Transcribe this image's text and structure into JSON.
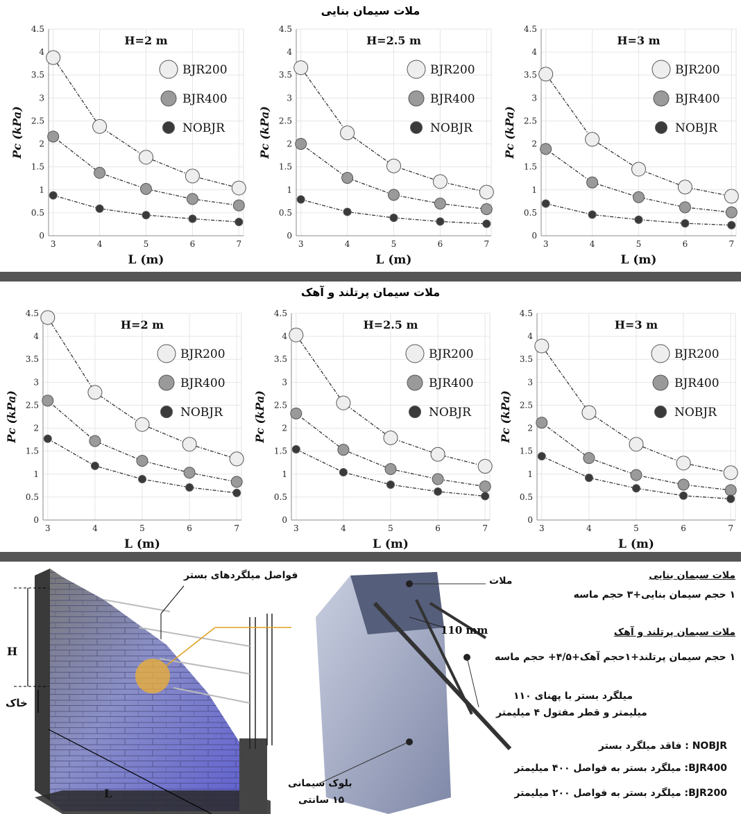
{
  "section_titles": [
    "ملات سیمان بنایی",
    "ملات سیمان پرتلند و آهک"
  ],
  "chart_data": [
    {
      "type": "scatter",
      "title": "H=2 m",
      "xlabel": "L (m)",
      "ylabel": "Pc (kPa)",
      "x": [
        3,
        4,
        5,
        6,
        7
      ],
      "xlim": [
        2.9,
        7.1
      ],
      "ylim": [
        0,
        4.5
      ],
      "grid": true,
      "legend": "top-right",
      "series": [
        {
          "name": "BJR200",
          "values": [
            3.88,
            2.38,
            1.71,
            1.3,
            1.04
          ]
        },
        {
          "name": "BJR400",
          "values": [
            2.16,
            1.37,
            1.02,
            0.8,
            0.66
          ]
        },
        {
          "name": "NOBJR",
          "values": [
            0.88,
            0.59,
            0.45,
            0.37,
            0.3
          ]
        }
      ]
    },
    {
      "type": "scatter",
      "title": "H=2.5 m",
      "xlabel": "L (m)",
      "ylabel": "Pc (kPa)",
      "x": [
        3,
        4,
        5,
        6,
        7
      ],
      "xlim": [
        2.9,
        7.1
      ],
      "ylim": [
        0,
        4.5
      ],
      "grid": true,
      "legend": "top-right",
      "series": [
        {
          "name": "BJR200",
          "values": [
            3.66,
            2.24,
            1.52,
            1.18,
            0.95
          ]
        },
        {
          "name": "BJR400",
          "values": [
            2.0,
            1.26,
            0.89,
            0.7,
            0.58
          ]
        },
        {
          "name": "NOBJR",
          "values": [
            0.79,
            0.52,
            0.39,
            0.31,
            0.26
          ]
        }
      ]
    },
    {
      "type": "scatter",
      "title": "H=3 m",
      "xlabel": "L (m)",
      "ylabel": "Pc (kPa)",
      "x": [
        3,
        4,
        5,
        6,
        7
      ],
      "xlim": [
        2.9,
        7.1
      ],
      "ylim": [
        0,
        4.5
      ],
      "grid": true,
      "legend": "top-right",
      "series": [
        {
          "name": "BJR200",
          "values": [
            3.52,
            2.1,
            1.45,
            1.06,
            0.86
          ]
        },
        {
          "name": "BJR400",
          "values": [
            1.89,
            1.16,
            0.84,
            0.62,
            0.51
          ]
        },
        {
          "name": "NOBJR",
          "values": [
            0.7,
            0.46,
            0.35,
            0.27,
            0.23
          ]
        }
      ]
    },
    {
      "type": "scatter",
      "title": "H=2 m",
      "xlabel": "L (m)",
      "ylabel": "Pc (kPa)",
      "x": [
        3,
        4,
        5,
        6,
        7
      ],
      "xlim": [
        2.9,
        7.1
      ],
      "ylim": [
        0,
        4.5
      ],
      "grid": true,
      "legend": "top-right",
      "series": [
        {
          "name": "BJR200",
          "values": [
            4.41,
            2.78,
            2.08,
            1.65,
            1.33
          ]
        },
        {
          "name": "BJR400",
          "values": [
            2.6,
            1.72,
            1.29,
            1.03,
            0.83
          ]
        },
        {
          "name": "NOBJR",
          "values": [
            1.77,
            1.18,
            0.89,
            0.71,
            0.59
          ]
        }
      ]
    },
    {
      "type": "scatter",
      "title": "H=2.5 m",
      "xlabel": "L (m)",
      "ylabel": "Pc (kPa)",
      "x": [
        3,
        4,
        5,
        6,
        7
      ],
      "xlim": [
        2.9,
        7.1
      ],
      "ylim": [
        0,
        4.5
      ],
      "grid": true,
      "legend": "top-right",
      "series": [
        {
          "name": "BJR200",
          "values": [
            4.03,
            2.55,
            1.79,
            1.43,
            1.17
          ]
        },
        {
          "name": "BJR400",
          "values": [
            2.32,
            1.53,
            1.11,
            0.89,
            0.73
          ]
        },
        {
          "name": "NOBJR",
          "values": [
            1.54,
            1.04,
            0.77,
            0.62,
            0.52
          ]
        }
      ]
    },
    {
      "type": "scatter",
      "title": "H=3 m",
      "xlabel": "L (m)",
      "ylabel": "Pc (kPa)",
      "x": [
        3,
        4,
        5,
        6,
        7
      ],
      "xlim": [
        2.9,
        7.1
      ],
      "ylim": [
        0,
        4.5
      ],
      "grid": true,
      "legend": "top-right",
      "series": [
        {
          "name": "BJR200",
          "values": [
            3.79,
            2.34,
            1.65,
            1.24,
            1.03
          ]
        },
        {
          "name": "BJR400",
          "values": [
            2.12,
            1.35,
            0.98,
            0.77,
            0.65
          ]
        },
        {
          "name": "NOBJR",
          "values": [
            1.39,
            0.92,
            0.69,
            0.53,
            0.46
          ]
        }
      ]
    }
  ],
  "series_colors": {
    "BJR200": "#eeeeee",
    "BJR400": "#9a9a9a",
    "NOBJR": "#3a3a3a"
  },
  "diagram": {
    "label_bed_spacing": "فواصل میلگردهای بستر",
    "label_mortar": "ملات",
    "label_110": "110 mm",
    "label_H": "H",
    "label_soil": "خاک",
    "label_L": "L",
    "label_bed_rebar_1": "میلگرد بستر با پهنای ۱۱۰",
    "label_bed_rebar_2": "میلیمتر و قطر مفتول ۴ میلیمتر",
    "label_block_1": "بلوک سیمانی",
    "label_block_2": "۱۵ سانتی",
    "masonry_title": "ملات سیمان بنایی",
    "masonry_mix": "۱ حجم سیمان بنایی+۳ حجم ماسه",
    "lime_title": "ملات سیمان پرتلند و آهک",
    "lime_mix": "۱ حجم سیمان پرتلند+۱حجم آهک+۴/۵+ حجم ماسه",
    "def_nobjr": "NOBJR : فاقد میلگرد بستر",
    "def_bjr400": "BJR400: میلگرد بستر به فواصل ۴۰۰ میلیمتر",
    "def_bjr200": "BJR200: میلگرد بستر به فواصل ۲۰۰ میلیمتر"
  }
}
